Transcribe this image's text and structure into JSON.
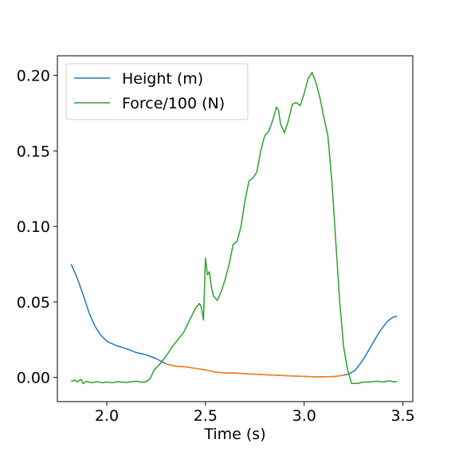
{
  "chart_data": {
    "type": "line",
    "title": "",
    "xlabel": "Time (s)",
    "ylabel": "",
    "xlim": [
      1.75,
      3.55
    ],
    "ylim": [
      -0.016,
      0.213
    ],
    "xticks": [
      2.0,
      2.5,
      3.0,
      3.5
    ],
    "xtick_labels": [
      "2.0",
      "2.5",
      "3.0",
      "3.5"
    ],
    "yticks": [
      0.0,
      0.05,
      0.1,
      0.15,
      0.2
    ],
    "ytick_labels": [
      "0.00",
      "0.05",
      "0.10",
      "0.15",
      "0.20"
    ],
    "grid": false,
    "legend_position": "upper-left",
    "colors": {
      "height": "#1f77b4",
      "force": "#2ca02c",
      "overlap": "#ff7f0e"
    },
    "series": [
      {
        "name": "Height (m)",
        "color": "#1f77b4",
        "points": [
          [
            1.82,
            0.075
          ],
          [
            1.85,
            0.066
          ],
          [
            1.88,
            0.055
          ],
          [
            1.91,
            0.043
          ],
          [
            1.94,
            0.034
          ],
          [
            1.97,
            0.028
          ],
          [
            2.0,
            0.024
          ],
          [
            2.05,
            0.021
          ],
          [
            2.1,
            0.019
          ],
          [
            2.15,
            0.0165
          ],
          [
            2.2,
            0.015
          ],
          [
            2.25,
            0.0125
          ],
          [
            2.3,
            0.009
          ],
          [
            2.35,
            0.0075
          ],
          [
            2.4,
            0.007
          ],
          [
            2.45,
            0.006
          ],
          [
            2.5,
            0.005
          ],
          [
            2.55,
            0.0035
          ],
          [
            2.6,
            0.003
          ],
          [
            2.65,
            0.003
          ],
          [
            2.7,
            0.0025
          ],
          [
            2.8,
            0.0018
          ],
          [
            2.9,
            0.0012
          ],
          [
            3.0,
            0.0007
          ],
          [
            3.05,
            0.0004
          ],
          [
            3.1,
            0.0004
          ],
          [
            3.15,
            0.0006
          ],
          [
            3.2,
            0.0015
          ],
          [
            3.23,
            0.0025
          ],
          [
            3.26,
            0.005
          ],
          [
            3.3,
            0.012
          ],
          [
            3.34,
            0.021
          ],
          [
            3.38,
            0.03
          ],
          [
            3.42,
            0.037
          ],
          [
            3.45,
            0.04
          ],
          [
            3.47,
            0.0405
          ]
        ]
      },
      {
        "name": "Force/100 (N)",
        "color": "#2ca02c",
        "points": [
          [
            1.82,
            -0.0025
          ],
          [
            1.84,
            -0.0018
          ],
          [
            1.85,
            -0.003
          ],
          [
            1.87,
            -0.0012
          ],
          [
            1.88,
            -0.004
          ],
          [
            1.9,
            -0.0025
          ],
          [
            1.92,
            -0.0035
          ],
          [
            1.95,
            -0.0028
          ],
          [
            1.98,
            -0.0035
          ],
          [
            2.0,
            -0.003
          ],
          [
            2.03,
            -0.0035
          ],
          [
            2.05,
            -0.0028
          ],
          [
            2.1,
            -0.0033
          ],
          [
            2.15,
            -0.0025
          ],
          [
            2.18,
            -0.0032
          ],
          [
            2.2,
            -0.0028
          ],
          [
            2.22,
            -0.0008
          ],
          [
            2.24,
            0.005
          ],
          [
            2.27,
            0.009
          ],
          [
            2.3,
            0.014
          ],
          [
            2.33,
            0.02
          ],
          [
            2.36,
            0.025
          ],
          [
            2.39,
            0.03
          ],
          [
            2.42,
            0.038
          ],
          [
            2.45,
            0.046
          ],
          [
            2.47,
            0.049
          ],
          [
            2.48,
            0.046
          ],
          [
            2.49,
            0.038
          ],
          [
            2.5,
            0.079
          ],
          [
            2.51,
            0.068
          ],
          [
            2.52,
            0.07
          ],
          [
            2.53,
            0.06
          ],
          [
            2.54,
            0.054
          ],
          [
            2.56,
            0.051
          ],
          [
            2.58,
            0.057
          ],
          [
            2.6,
            0.065
          ],
          [
            2.62,
            0.075
          ],
          [
            2.64,
            0.088
          ],
          [
            2.66,
            0.09
          ],
          [
            2.68,
            0.1
          ],
          [
            2.7,
            0.117
          ],
          [
            2.72,
            0.13
          ],
          [
            2.74,
            0.132
          ],
          [
            2.76,
            0.136
          ],
          [
            2.78,
            0.15
          ],
          [
            2.8,
            0.16
          ],
          [
            2.82,
            0.163
          ],
          [
            2.84,
            0.17
          ],
          [
            2.86,
            0.179
          ],
          [
            2.87,
            0.177
          ],
          [
            2.88,
            0.168
          ],
          [
            2.9,
            0.162
          ],
          [
            2.92,
            0.17
          ],
          [
            2.94,
            0.181
          ],
          [
            2.96,
            0.182
          ],
          [
            2.98,
            0.18
          ],
          [
            3.0,
            0.188
          ],
          [
            3.02,
            0.198
          ],
          [
            3.04,
            0.202
          ],
          [
            3.06,
            0.195
          ],
          [
            3.08,
            0.185
          ],
          [
            3.1,
            0.172
          ],
          [
            3.12,
            0.16
          ],
          [
            3.14,
            0.13
          ],
          [
            3.16,
            0.09
          ],
          [
            3.18,
            0.05
          ],
          [
            3.2,
            0.02
          ],
          [
            3.22,
            0.005
          ],
          [
            3.24,
            -0.004
          ],
          [
            3.27,
            -0.004
          ],
          [
            3.3,
            -0.003
          ],
          [
            3.33,
            -0.003
          ],
          [
            3.37,
            -0.0025
          ],
          [
            3.4,
            -0.003
          ],
          [
            3.43,
            -0.0022
          ],
          [
            3.46,
            -0.003
          ],
          [
            3.47,
            -0.0025
          ]
        ]
      }
    ]
  }
}
